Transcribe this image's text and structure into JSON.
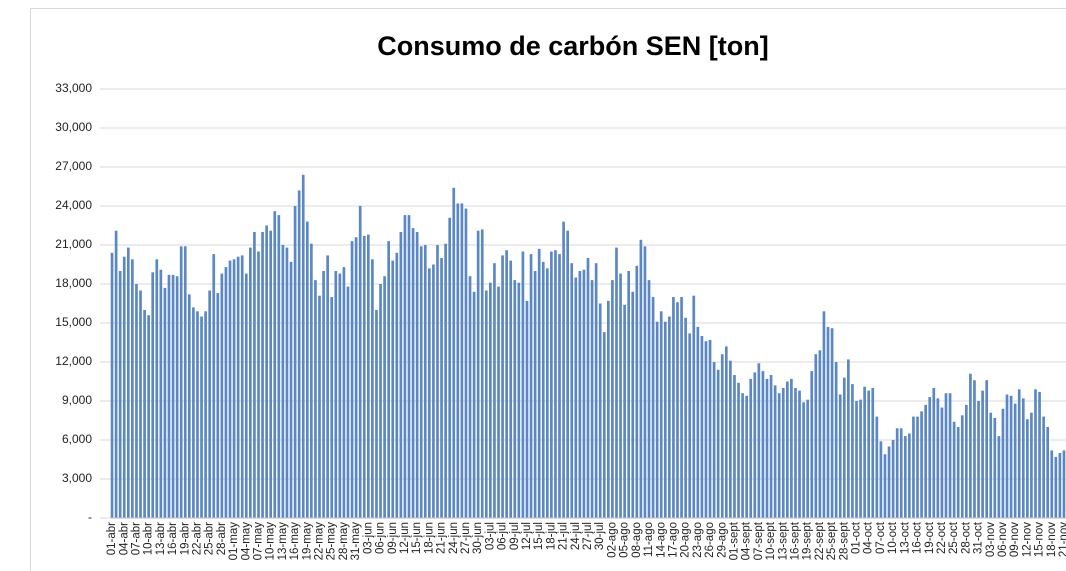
{
  "chart_data": {
    "type": "bar",
    "title": "Consumo de carbón SEN [ton]",
    "categories": [
      "01-abr",
      null,
      null,
      "04-abr",
      null,
      null,
      "07-abr",
      null,
      null,
      "10-abr",
      null,
      null,
      "13-abr",
      null,
      null,
      "16-abr",
      null,
      null,
      "19-abr",
      null,
      null,
      "22-abr",
      null,
      null,
      "25-abr",
      null,
      null,
      "28-abr",
      null,
      null,
      "01-may",
      null,
      null,
      "04-may",
      null,
      null,
      "07-may",
      null,
      null,
      "10-may",
      null,
      null,
      "13-may",
      null,
      null,
      "16-may",
      null,
      null,
      "19-may",
      null,
      null,
      "22-may",
      null,
      null,
      "25-may",
      null,
      null,
      "28-may",
      null,
      null,
      "31-may",
      null,
      null,
      "03-jun",
      null,
      null,
      "06-jun",
      null,
      null,
      "09-jun",
      null,
      null,
      "12-jun",
      null,
      null,
      "15-jun",
      null,
      null,
      "18-jun",
      null,
      null,
      "21-jun",
      null,
      null,
      "24-jun",
      null,
      null,
      "27-jun",
      null,
      null,
      "30-jun",
      null,
      null,
      "03-jul",
      null,
      null,
      "06-jul",
      null,
      null,
      "09-jul",
      null,
      null,
      "12-jul",
      null,
      null,
      "15-jul",
      null,
      null,
      "18-jul",
      null,
      null,
      "21-jul",
      null,
      null,
      "24-jul",
      null,
      null,
      "27-jul",
      null,
      null,
      "30-jul",
      null,
      null,
      "02-ago",
      null,
      null,
      "05-ago",
      null,
      null,
      "08-ago",
      null,
      null,
      "11-ago",
      null,
      null,
      "14-ago",
      null,
      null,
      "17-ago",
      null,
      null,
      "20-ago",
      null,
      null,
      "23-ago",
      null,
      null,
      "26-ago",
      null,
      null,
      "29-ago",
      null,
      null,
      "01-sept",
      null,
      null,
      "04-sept",
      null,
      null,
      "07-sept",
      null,
      null,
      "10-sept",
      null,
      null,
      "13-sept",
      null,
      null,
      "16-sept",
      null,
      null,
      "19-sept",
      null,
      null,
      "22-sept",
      null,
      null,
      "25-sept",
      null,
      null,
      "28-sept",
      null,
      null,
      "01-oct",
      null,
      null,
      "04-oct",
      null,
      null,
      "07-oct",
      null,
      null,
      "10-oct",
      null,
      null,
      "13-oct",
      null,
      null,
      "16-oct",
      null,
      null,
      "19-oct",
      null,
      null,
      "22-oct",
      null,
      null,
      "25-oct",
      null,
      null,
      "28-oct",
      null,
      null,
      "31-oct",
      null,
      null,
      "03-nov",
      null,
      null,
      "06-nov",
      null,
      null,
      "09-nov",
      null,
      null,
      "12-nov",
      null,
      null,
      "15-nov",
      null,
      null,
      "18-nov",
      null,
      null,
      "21-nov"
    ],
    "values": [
      20400,
      22100,
      19000,
      20100,
      20800,
      19900,
      18000,
      17500,
      16000,
      15600,
      18900,
      19900,
      19100,
      17700,
      18700,
      18700,
      18600,
      20900,
      20900,
      17200,
      16200,
      15900,
      15500,
      15900,
      17500,
      20300,
      17300,
      18800,
      19300,
      19800,
      19900,
      20100,
      20200,
      18800,
      20800,
      22000,
      20500,
      22000,
      22500,
      22100,
      23600,
      23300,
      21000,
      20800,
      19700,
      24000,
      25200,
      26400,
      22800,
      21100,
      18300,
      17100,
      19000,
      20200,
      17000,
      19000,
      18800,
      19300,
      17800,
      21300,
      21600,
      24000,
      21700,
      21800,
      19900,
      16000,
      18000,
      18600,
      21300,
      19800,
      20400,
      22000,
      23300,
      23300,
      22300,
      22000,
      20900,
      21000,
      19200,
      19500,
      21000,
      20000,
      21100,
      23100,
      25400,
      24200,
      24200,
      23800,
      18600,
      17400,
      22100,
      22200,
      17500,
      18100,
      19600,
      17800,
      20200,
      20600,
      19800,
      18300,
      18100,
      20500,
      16700,
      20300,
      19000,
      20700,
      19700,
      19200,
      20500,
      20600,
      20300,
      22800,
      22100,
      19600,
      18500,
      19000,
      19100,
      20000,
      18300,
      19600,
      16500,
      14300,
      16700,
      18300,
      20800,
      18800,
      16400,
      19000,
      17400,
      19400,
      21400,
      20900,
      18300,
      17000,
      15100,
      15900,
      15100,
      15500,
      17000,
      16600,
      17000,
      15400,
      14200,
      17100,
      14700,
      14000,
      13600,
      13700,
      12000,
      11400,
      12600,
      13200,
      12100,
      11000,
      10400,
      9600,
      9400,
      10700,
      11200,
      11900,
      11300,
      10700,
      11000,
      10200,
      9600,
      10000,
      10500,
      10700,
      10000,
      9800,
      8900,
      9100,
      11300,
      12600,
      12900,
      15900,
      14700,
      14600,
      12000,
      9500,
      10800,
      12200,
      10300,
      9000,
      9100,
      10100,
      9800,
      10000,
      7800,
      5900,
      4900,
      5500,
      6000,
      6900,
      6900,
      6300,
      6500,
      7800,
      7800,
      8200,
      8700,
      9300,
      10000,
      9200,
      8500,
      9600,
      9600,
      7400,
      7000,
      7900,
      8700,
      11100,
      10600,
      9000,
      9800,
      10600,
      8100,
      7700,
      6300,
      8400,
      9500,
      9400,
      8800,
      9900,
      9200,
      7600,
      8100,
      9900,
      9700,
      7800,
      7000,
      5200,
      4700,
      5000,
      5200
    ],
    "color": "#5b88c4",
    "ylim": [
      0,
      33000
    ],
    "yticks": [
      {
        "value": 0,
        "label": "-"
      },
      {
        "value": 3000,
        "label": "3,000"
      },
      {
        "value": 6000,
        "label": "6,000"
      },
      {
        "value": 9000,
        "label": "9,000"
      },
      {
        "value": 12000,
        "label": "12,000"
      },
      {
        "value": 15000,
        "label": "15,000"
      },
      {
        "value": 18000,
        "label": "18,000"
      },
      {
        "value": 21000,
        "label": "21,000"
      },
      {
        "value": 24000,
        "label": "24,000"
      },
      {
        "value": 27000,
        "label": "27,000"
      },
      {
        "value": 30000,
        "label": "30,000"
      },
      {
        "value": 33000,
        "label": "33,000"
      }
    ],
    "grid": true
  }
}
